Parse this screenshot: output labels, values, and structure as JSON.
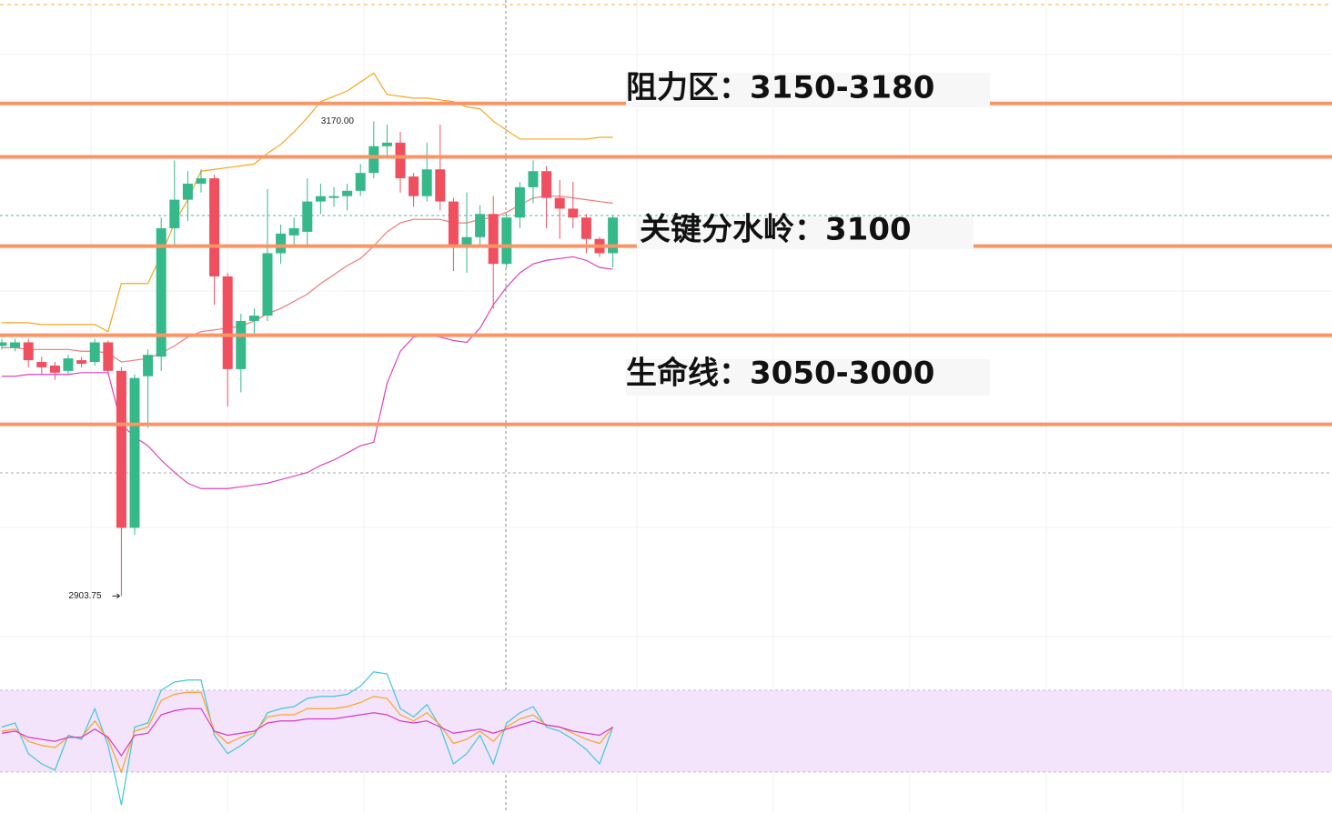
{
  "chart_data": [
    {
      "type": "candlestick",
      "categories": [
        null,
        null,
        null,
        null,
        null,
        null,
        null,
        null,
        null,
        null,
        null,
        null,
        null,
        null,
        null,
        null,
        null,
        null,
        null,
        null,
        null,
        null,
        null,
        null,
        null,
        null,
        null,
        null,
        null,
        null,
        null,
        null,
        null,
        null,
        null,
        null,
        null,
        null,
        null,
        null,
        null,
        null,
        null,
        null,
        null,
        null,
        null
      ],
      "open": [
        3044,
        3043,
        3046,
        3035,
        3033,
        3030,
        3036,
        3035,
        3046,
        3030,
        2942,
        3027,
        3038,
        3110,
        3126,
        3135,
        3138,
        3083,
        3031,
        3058,
        3061,
        3096,
        3106,
        3108,
        3125,
        3127,
        3128,
        3131,
        3141,
        3156,
        3158,
        3139,
        3128,
        3143,
        3125,
        3100,
        3105,
        3118,
        3090,
        3116,
        3133,
        3142,
        3127,
        3121,
        3116,
        3104,
        3096
      ],
      "high": [
        3048,
        3048,
        3048,
        3038,
        3035,
        3039,
        3038,
        3048,
        3047,
        3032,
        3028,
        3042,
        3116,
        3148,
        3142,
        3143,
        3140,
        3085,
        3062,
        3065,
        3132,
        3112,
        3116,
        3138,
        3135,
        3133,
        3135,
        3146,
        3170,
        3168,
        3164,
        3141,
        3158,
        3168,
        3127,
        3130,
        3123,
        3128,
        3118,
        3136,
        3148,
        3145,
        3137,
        3136,
        3118,
        3105,
        3117
      ],
      "low": [
        3042,
        3041,
        3032,
        3028,
        3025,
        3028,
        3032,
        3033,
        3028,
        2903.75,
        2938,
        2998,
        3030,
        3100,
        3114,
        3130,
        3067,
        3010,
        3018,
        3050,
        3058,
        3090,
        3100,
        3100,
        3118,
        3122,
        3120,
        3128,
        3138,
        3150,
        3130,
        3122,
        3125,
        3120,
        3086,
        3085,
        3100,
        3065,
        3088,
        3110,
        3124,
        3110,
        3104,
        3110,
        3096,
        3094,
        3088
      ],
      "close": [
        3046,
        3046,
        3036,
        3032,
        3029,
        3037,
        3034,
        3046,
        3030,
        2942,
        3026,
        3039,
        3110,
        3126,
        3135,
        3138,
        3083,
        3031,
        3058,
        3061,
        3096,
        3107,
        3110,
        3125,
        3128,
        3128,
        3131,
        3141,
        3156,
        3158,
        3138,
        3128,
        3143,
        3125,
        3100,
        3105,
        3118,
        3090,
        3116,
        3133,
        3142,
        3127,
        3121,
        3116,
        3104,
        3096,
        3116
      ],
      "up_color": "#35b88a",
      "down_color": "#ef4f5e",
      "ylim": [
        2881,
        3238
      ],
      "levels": [
        3180,
        3150,
        3100,
        3050,
        3000
      ],
      "level_color": "#fb9467",
      "series": [
        {
          "color": "#f5a623",
          "values": [
            3057,
            3057,
            3057,
            3056,
            3056,
            3056,
            3056,
            3056,
            3052,
            3079,
            3079,
            3079,
            3095,
            3113,
            3126,
            3142,
            3143,
            3144,
            3145,
            3146,
            3152,
            3157,
            3164,
            3172,
            3181,
            3184,
            3187,
            3192,
            3197,
            3185,
            3184,
            3183,
            3183,
            3182,
            3181,
            3178,
            3177,
            3170,
            3165,
            3160,
            3160,
            3160,
            3160,
            3160,
            3160,
            3161,
            3161
          ]
        },
        {
          "color": "#f07a7a",
          "values": [
            3043,
            3043,
            3042,
            3042,
            3042,
            3042,
            3041,
            3041,
            3040,
            3035,
            3036,
            3037,
            3040,
            3044,
            3049,
            3052,
            3053,
            3054,
            3055,
            3058,
            3062,
            3065,
            3069,
            3073,
            3079,
            3084,
            3089,
            3093,
            3100,
            3108,
            3113,
            3115,
            3115,
            3115,
            3113,
            3113,
            3115,
            3116,
            3119,
            3123,
            3127,
            3128,
            3128,
            3127,
            3126,
            3125,
            3124
          ]
        },
        {
          "color": "#e040c0",
          "values": [
            3027,
            3027,
            3028,
            3028,
            3028,
            3028,
            3029,
            3029,
            3029,
            3000,
            2993,
            2988,
            2980,
            2973,
            2967,
            2964,
            2964,
            2964,
            2965,
            2966,
            2967,
            2969,
            2971,
            2973,
            2977,
            2980,
            2984,
            2988,
            2990,
            3023,
            3041,
            3049,
            3050,
            3049,
            3047,
            3046,
            3054,
            3067,
            3077,
            3085,
            3090,
            3092,
            3093,
            3094,
            3092,
            3088,
            3087
          ]
        }
      ],
      "annotations": [
        "阻力区：3150-3180",
        "关键分水岭：3100",
        "生命线：3050-3000"
      ],
      "price_labels": [
        {
          "value": 3170,
          "label": "3170.00"
        },
        {
          "value": 2903.75,
          "label": "2903.75"
        }
      ]
    },
    {
      "type": "line",
      "ylim": [
        10,
        90
      ],
      "band": [
        30,
        70
      ],
      "band_color": "#f3e4fc",
      "series": [
        {
          "color": "#3fc8d8",
          "values": [
            52,
            54,
            39,
            34,
            31,
            48,
            46,
            61,
            43,
            14,
            52,
            54,
            70,
            74,
            75,
            75,
            48,
            39,
            43,
            48,
            59,
            61,
            62,
            66,
            67,
            67,
            68,
            72,
            79,
            78,
            61,
            57,
            63,
            52,
            34,
            39,
            48,
            34,
            54,
            59,
            62,
            52,
            50,
            46,
            41,
            34,
            52
          ]
        },
        {
          "color": "#f5a623",
          "values": [
            50,
            51,
            45,
            43,
            42,
            47,
            47,
            55,
            46,
            30,
            50,
            52,
            65,
            68,
            69,
            69,
            50,
            44,
            47,
            49,
            57,
            58,
            58,
            61,
            61,
            61,
            62,
            64,
            67,
            66,
            58,
            55,
            59,
            53,
            44,
            46,
            50,
            45,
            52,
            56,
            58,
            53,
            52,
            49,
            46,
            44,
            52
          ]
        },
        {
          "color": "#d63ac8",
          "values": [
            49,
            50,
            47,
            46,
            45,
            47,
            47,
            51,
            47,
            38,
            48,
            49,
            58,
            60,
            61,
            61,
            50,
            48,
            49,
            50,
            54,
            55,
            55,
            56,
            56,
            56,
            57,
            58,
            59,
            58,
            55,
            54,
            55,
            52,
            49,
            50,
            51,
            49,
            51,
            53,
            55,
            53,
            52,
            50,
            49,
            48,
            52
          ]
        }
      ]
    }
  ]
}
